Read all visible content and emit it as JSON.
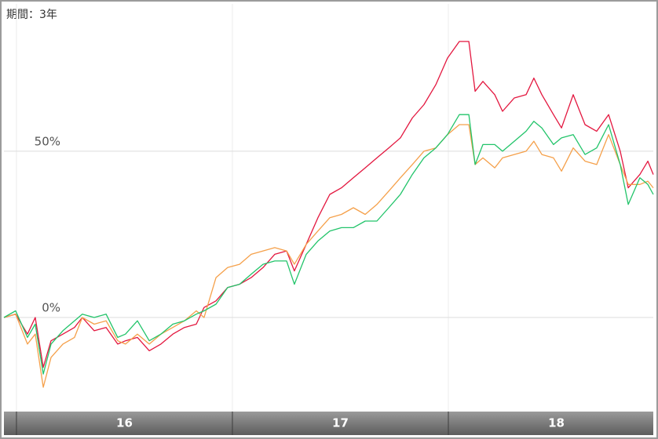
{
  "chart_data": {
    "type": "line",
    "title": "期間：3年",
    "x": [
      15.942,
      15.996,
      16.051,
      16.087,
      16.124,
      16.16,
      16.215,
      16.269,
      16.305,
      16.36,
      16.415,
      16.469,
      16.505,
      16.56,
      16.615,
      16.669,
      16.724,
      16.778,
      16.833,
      16.869,
      16.924,
      16.978,
      17.033,
      17.087,
      17.142,
      17.196,
      17.251,
      17.287,
      17.342,
      17.396,
      17.451,
      17.505,
      17.56,
      17.615,
      17.669,
      17.724,
      17.778,
      17.833,
      17.887,
      17.942,
      17.996,
      18.051,
      18.095,
      18.124,
      18.16,
      18.215,
      18.251,
      18.305,
      18.36,
      18.396,
      18.433,
      18.487,
      18.524,
      18.578,
      18.633,
      18.687,
      18.742,
      18.796,
      18.833,
      18.887,
      18.924,
      18.949
    ],
    "series": [
      {
        "color": "#e3173f",
        "values": [
          0,
          1,
          -5,
          0,
          -15,
          -7,
          -5,
          -3,
          0,
          -4,
          -3,
          -8,
          -7,
          -6,
          -10,
          -8,
          -5,
          -3,
          -2,
          3,
          5,
          9,
          10,
          12,
          15,
          19,
          20,
          14,
          22,
          30,
          37,
          39,
          42,
          45,
          48,
          51,
          54,
          60,
          64,
          70,
          78,
          83,
          83,
          68,
          71,
          67,
          62,
          66,
          67,
          72,
          67,
          61,
          57,
          67,
          58,
          56,
          61,
          50,
          39,
          43,
          47,
          43
        ]
      },
      {
        "color": "#f5a04a",
        "values": [
          0,
          1,
          -8,
          -5,
          -21,
          -12,
          -8,
          -6,
          0,
          -2,
          -1,
          -7,
          -8,
          -5,
          -8,
          -5,
          -3,
          -1,
          2,
          0,
          12,
          15,
          16,
          19,
          20,
          21,
          20,
          16,
          22,
          26,
          30,
          31,
          33,
          31,
          34,
          38,
          42,
          46,
          50,
          51,
          55,
          58,
          58,
          46,
          48,
          45,
          48,
          49,
          50,
          53,
          49,
          48,
          44,
          51,
          47,
          46,
          55,
          46,
          40,
          40,
          41,
          39
        ]
      },
      {
        "color": "#22c46a",
        "values": [
          0,
          2,
          -6,
          -2,
          -17,
          -8,
          -4,
          -1,
          1,
          0,
          1,
          -6,
          -5,
          -1,
          -7,
          -5,
          -2,
          -1,
          1,
          2,
          4,
          9,
          10,
          13,
          16,
          17,
          17,
          10,
          19,
          23,
          26,
          27,
          27,
          29,
          29,
          33,
          37,
          43,
          48,
          51,
          55,
          61,
          61,
          46,
          52,
          52,
          50,
          53,
          56,
          59,
          57,
          52,
          54,
          55,
          49,
          51,
          58,
          46,
          34,
          42,
          40,
          37
        ]
      }
    ],
    "xlim": [
      15.942,
      18.949
    ],
    "xticks": [
      {
        "value": 16.5,
        "label": "16"
      },
      {
        "value": 17.5,
        "label": "17"
      },
      {
        "value": 18.5,
        "label": "18"
      }
    ],
    "ylim": [
      -28.3,
      94.3
    ],
    "yticks": [
      {
        "value": 0,
        "label": "0%"
      },
      {
        "value": 50,
        "label": "50%"
      }
    ],
    "grid": true
  }
}
